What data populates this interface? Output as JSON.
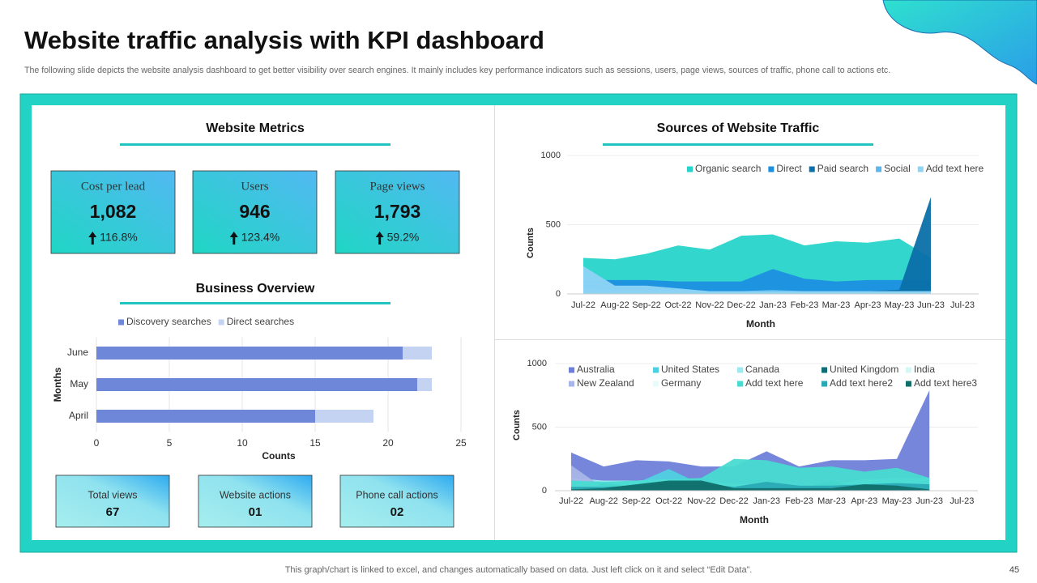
{
  "header": {
    "title": "Website traffic analysis with KPI dashboard",
    "subtitle": "The following slide depicts the website analysis dashboard to get better visibility over search engines. It mainly includes key performance indicators such as sessions, users, page views, sources of traffic, phone call to actions etc."
  },
  "metrics": {
    "title": "Website Metrics",
    "cards": [
      {
        "label": "Cost per lead",
        "value": "1,082",
        "change": "116.8%"
      },
      {
        "label": "Users",
        "value": "946",
        "change": "123.4%"
      },
      {
        "label": "Page views",
        "value": "1,793",
        "change": "59.2%"
      }
    ]
  },
  "summary_cards": [
    {
      "label": "Total views",
      "value": "67"
    },
    {
      "label": "Website actions",
      "value": "01"
    },
    {
      "label": "Phone call actions",
      "value": "02"
    }
  ],
  "chart_data": [
    {
      "type": "bar",
      "title": "Business Overview",
      "orientation": "horizontal",
      "stacked": true,
      "categories": [
        "April",
        "May",
        "June"
      ],
      "series": [
        {
          "name": "Discovery searches",
          "color": "#6f87d8",
          "values": [
            15,
            22,
            21
          ]
        },
        {
          "name": "Direct searches",
          "color": "#c5d3f3",
          "values": [
            4,
            1,
            2
          ]
        }
      ],
      "xlim": [
        0,
        25
      ],
      "xticks": [
        0,
        5,
        10,
        15,
        20,
        25
      ],
      "xlabel": "Counts",
      "ylabel": "Months",
      "grid": true,
      "legend": "top"
    },
    {
      "type": "area",
      "title": "Sources of Website Traffic",
      "categories": [
        "Jul-22",
        "Aug-22",
        "Sep-22",
        "Oct-22",
        "Nov-22",
        "Dec-22",
        "Jan-23",
        "Feb-23",
        "Mar-23",
        "Apr-23",
        "May-23",
        "Jun-23",
        "Jul-23"
      ],
      "series": [
        {
          "name": "Organic search",
          "color": "#27d4c9",
          "values": [
            260,
            250,
            290,
            350,
            320,
            420,
            430,
            350,
            380,
            370,
            400,
            260,
            null
          ]
        },
        {
          "name": "Direct",
          "color": "#1e8fe0",
          "values": [
            100,
            100,
            100,
            90,
            90,
            90,
            180,
            110,
            90,
            100,
            100,
            100,
            null
          ]
        },
        {
          "name": "Paid search",
          "color": "#0b6fa8",
          "values": [
            20,
            20,
            20,
            20,
            15,
            15,
            20,
            15,
            15,
            20,
            30,
            700,
            null
          ]
        },
        {
          "name": "Social",
          "color": "#5ab7ec",
          "values": [
            40,
            30,
            30,
            30,
            20,
            20,
            30,
            20,
            20,
            20,
            20,
            20,
            null
          ]
        },
        {
          "name": "Add text here",
          "color": "#8ed4f5",
          "values": [
            200,
            60,
            60,
            40,
            20,
            20,
            20,
            20,
            20,
            20,
            20,
            20,
            null
          ]
        }
      ],
      "ylim": [
        0,
        1000
      ],
      "yticks": [
        0,
        500,
        1000
      ],
      "xlabel": "Month",
      "ylabel": "Counts",
      "grid": true,
      "legend": "top"
    },
    {
      "type": "area",
      "categories": [
        "Jul-22",
        "Aug-22",
        "Sep-22",
        "Oct-22",
        "Nov-22",
        "Dec-22",
        "Jan-23",
        "Feb-23",
        "Mar-23",
        "Apr-23",
        "May-23",
        "Jun-23",
        "Jul-23"
      ],
      "series": [
        {
          "name": "Australia",
          "color": "#6f7fd8",
          "values": [
            300,
            190,
            240,
            230,
            190,
            190,
            310,
            190,
            240,
            240,
            250,
            790,
            null
          ]
        },
        {
          "name": "United States",
          "color": "#4fd0e0",
          "values": [
            50,
            40,
            60,
            170,
            50,
            40,
            60,
            50,
            40,
            40,
            60,
            30,
            null
          ]
        },
        {
          "name": "Canada",
          "color": "#9ee8f0",
          "values": [
            100,
            80,
            80,
            90,
            70,
            50,
            50,
            40,
            50,
            90,
            100,
            100,
            null
          ]
        },
        {
          "name": "United Kingdom",
          "color": "#0d6e74",
          "values": [
            10,
            60,
            30,
            40,
            40,
            10,
            10,
            10,
            80,
            10,
            20,
            10,
            null
          ]
        },
        {
          "name": "India",
          "color": "#d4f7f5",
          "values": [
            30,
            30,
            30,
            30,
            30,
            30,
            30,
            30,
            30,
            30,
            30,
            30,
            null
          ]
        },
        {
          "name": "New Zealand",
          "color": "#a8b5e8",
          "values": [
            200,
            20,
            20,
            20,
            20,
            20,
            20,
            20,
            20,
            20,
            20,
            20,
            null
          ]
        },
        {
          "name": "Germany",
          "color": "#e8fafa",
          "values": [
            20,
            20,
            20,
            20,
            20,
            20,
            20,
            20,
            20,
            20,
            20,
            20,
            null
          ]
        },
        {
          "name": "Add text here",
          "color": "#48dbd1",
          "values": [
            80,
            70,
            80,
            90,
            100,
            250,
            240,
            180,
            190,
            150,
            180,
            100,
            null
          ]
        },
        {
          "name": "Add text here2",
          "color": "#2aa9b4",
          "values": [
            30,
            30,
            40,
            60,
            60,
            30,
            70,
            40,
            40,
            50,
            60,
            50,
            null
          ]
        },
        {
          "name": "Add text here3",
          "color": "#0f6e6a",
          "values": [
            10,
            20,
            50,
            80,
            80,
            20,
            20,
            20,
            20,
            50,
            40,
            10,
            null
          ]
        }
      ],
      "ylim": [
        0,
        1000
      ],
      "yticks": [
        0,
        500,
        1000
      ],
      "xlabel": "Month",
      "ylabel": "Counts",
      "grid": true,
      "legend": "top"
    }
  ],
  "footer": {
    "note": "This graph/chart is linked to excel, and changes automatically based on data. Just left click on it and select “Edit Data”.",
    "page": "45"
  }
}
